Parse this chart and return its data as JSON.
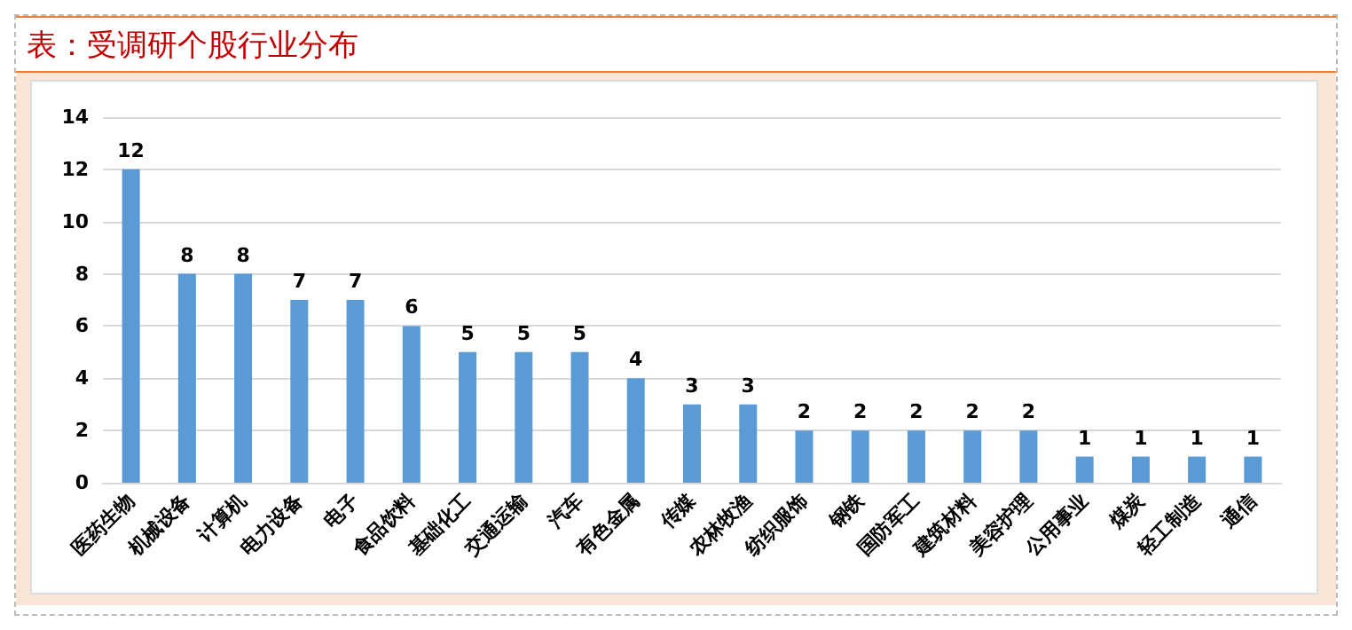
{
  "chart_data": {
    "type": "bar",
    "title": "表：受调研个股行业分布",
    "categories": [
      "医药生物",
      "机械设备",
      "计算机",
      "电力设备",
      "电子",
      "食品饮料",
      "基础化工",
      "交通运输",
      "汽车",
      "有色金属",
      "传媒",
      "农林牧渔",
      "纺织服饰",
      "钢铁",
      "国防军工",
      "建筑材料",
      "美容护理",
      "公用事业",
      "煤炭",
      "轻工制造",
      "通信"
    ],
    "values": [
      12,
      8,
      8,
      7,
      7,
      6,
      5,
      5,
      5,
      4,
      3,
      3,
      2,
      2,
      2,
      2,
      2,
      1,
      1,
      1,
      1
    ],
    "color": "#5b9bd5",
    "ylim": [
      0,
      14
    ],
    "yticks": [
      0,
      2,
      4,
      6,
      8,
      10,
      12,
      14
    ],
    "grid": "y",
    "data_labels": true
  }
}
